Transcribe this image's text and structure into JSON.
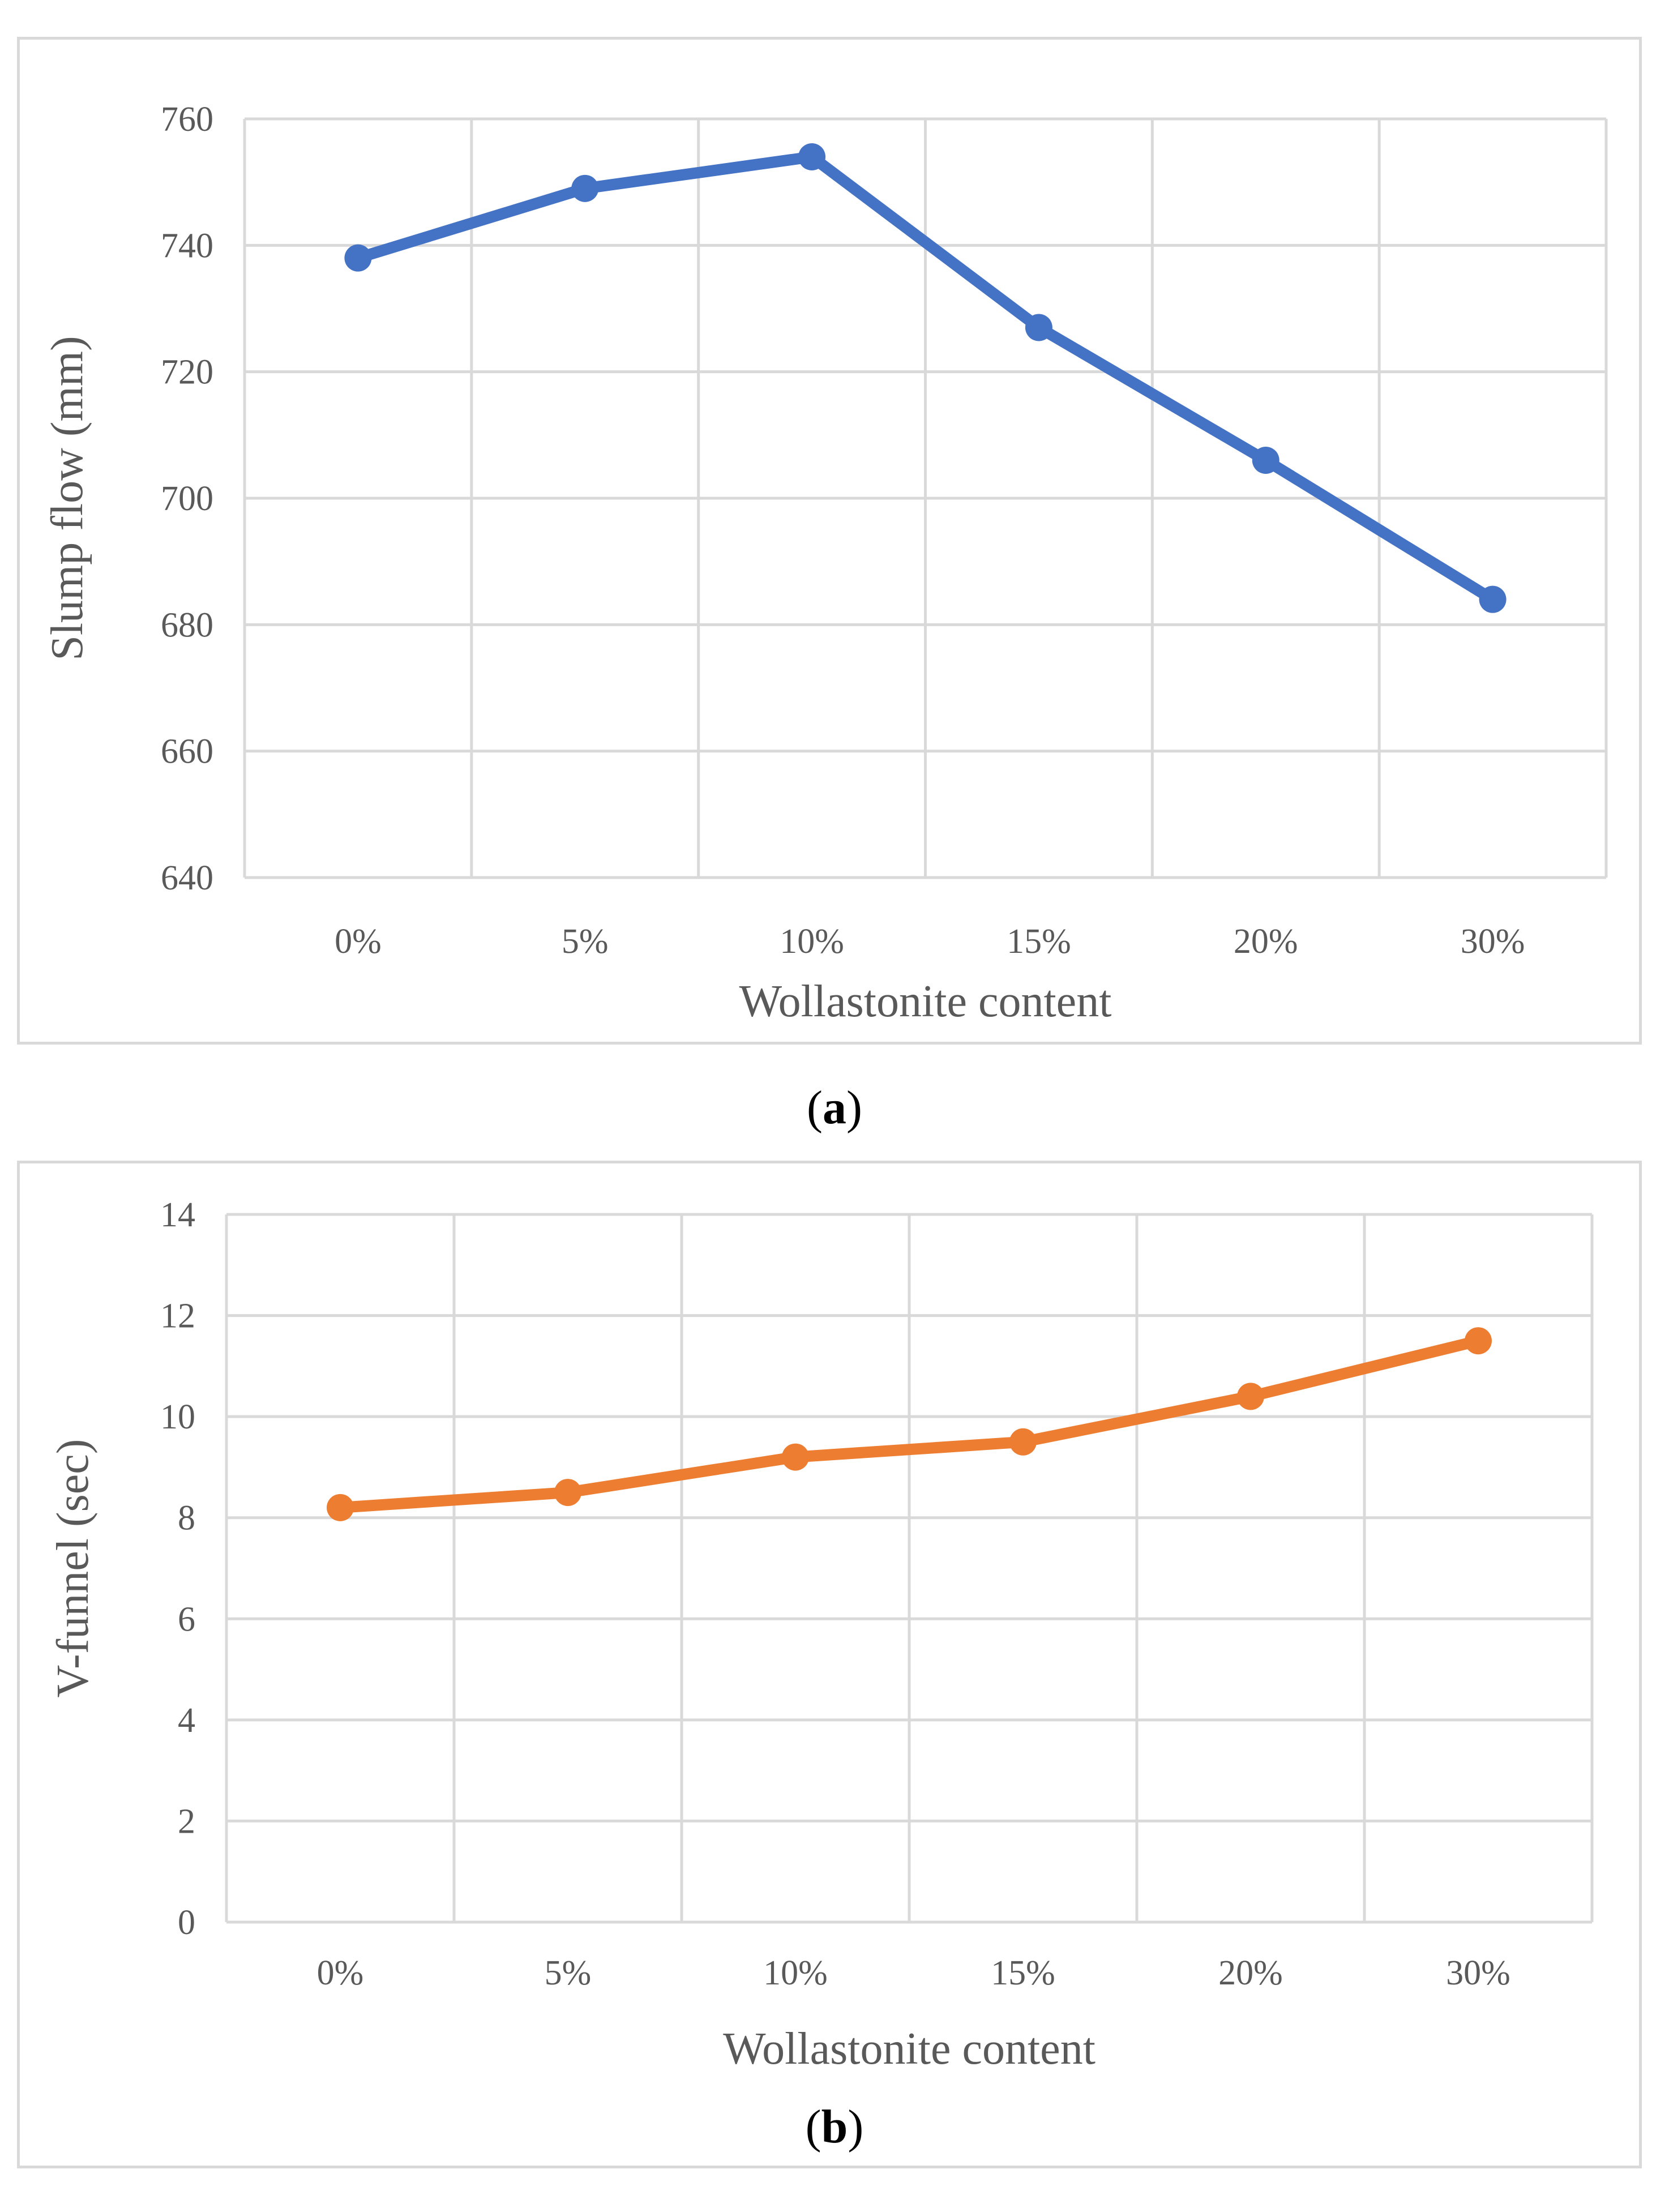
{
  "chart_data": [
    {
      "type": "line",
      "panel_label": "a",
      "categories": [
        "0%",
        "5%",
        "10%",
        "15%",
        "20%",
        "30%"
      ],
      "series": [
        {
          "name": "Slump flow",
          "values": [
            738,
            749,
            754,
            727,
            706,
            684
          ],
          "color": "#4472c4"
        }
      ],
      "xlabel": "Wollastonite content",
      "ylabel": "Slump flow (mm)",
      "ylim": [
        640,
        760
      ],
      "yticks": [
        640,
        660,
        680,
        700,
        720,
        740,
        760
      ],
      "grid": true
    },
    {
      "type": "line",
      "panel_label": "b",
      "categories": [
        "0%",
        "5%",
        "10%",
        "15%",
        "20%",
        "30%"
      ],
      "series": [
        {
          "name": "V-funnel",
          "values": [
            8.2,
            8.5,
            9.2,
            9.5,
            10.4,
            11.5
          ],
          "color": "#ed7d31"
        }
      ],
      "xlabel": "Wollastonite content",
      "ylabel": "V-funnel (sec)",
      "ylim": [
        0,
        14
      ],
      "yticks": [
        0,
        2,
        4,
        6,
        8,
        10,
        12,
        14
      ],
      "grid": true
    }
  ],
  "colors": {
    "grid": "#d9d9d9",
    "text": "#595959"
  }
}
